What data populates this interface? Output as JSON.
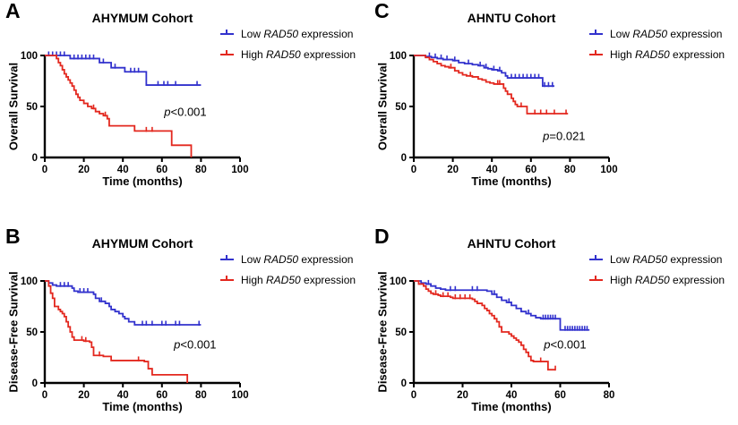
{
  "legend": {
    "items": [
      {
        "prefix": "Low ",
        "gene": "RAD50",
        "suffix": " expression",
        "color": "#3232cd"
      },
      {
        "prefix": "High ",
        "gene": "RAD50",
        "suffix": " expression",
        "color": "#e3281f"
      }
    ]
  },
  "chart_data": [
    {
      "type": "line",
      "panel": "A",
      "title": "AHYMUM Cohort",
      "xlabel": "Time (months)",
      "ylabel": "Overall Survival",
      "xlim": [
        0,
        100
      ],
      "xticks": [
        0,
        20,
        40,
        60,
        80,
        100
      ],
      "ylim": [
        0,
        100
      ],
      "yticks": [
        0,
        50,
        100
      ],
      "annotation": {
        "italic": "p",
        "text": "<0.001",
        "x": 72,
        "y": 45
      },
      "series": [
        {
          "name": "Low RAD50 expression",
          "color": "#3232cd",
          "start": [
            0,
            100
          ],
          "end_x": 80,
          "drops": [
            [
              13,
              97
            ],
            [
              28,
              93
            ],
            [
              34,
              88
            ],
            [
              41,
              84
            ],
            [
              52,
              71
            ]
          ],
          "censor_x": [
            2,
            4,
            6,
            8,
            10,
            15,
            17,
            19,
            21,
            23,
            25,
            30,
            36,
            44,
            46,
            48,
            58,
            61,
            63,
            67,
            78
          ]
        },
        {
          "name": "High RAD50 expression",
          "color": "#e3281f",
          "start": [
            0,
            100
          ],
          "end_x": 75,
          "drops": [
            [
              6,
              97
            ],
            [
              7,
              93
            ],
            [
              8,
              90
            ],
            [
              9,
              86
            ],
            [
              10,
              82
            ],
            [
              11,
              79
            ],
            [
              12,
              76
            ],
            [
              13,
              73
            ],
            [
              14,
              70
            ],
            [
              15,
              66
            ],
            [
              16,
              62
            ],
            [
              17,
              59
            ],
            [
              18,
              56
            ],
            [
              20,
              53
            ],
            [
              22,
              50
            ],
            [
              24,
              48
            ],
            [
              26,
              45
            ],
            [
              28,
              43
            ],
            [
              30,
              41
            ],
            [
              32,
              38
            ],
            [
              33,
              31
            ],
            [
              46,
              26
            ],
            [
              65,
              12
            ],
            [
              75,
              0
            ]
          ],
          "censor_x": [
            25,
            31,
            52,
            55
          ]
        }
      ]
    },
    {
      "type": "line",
      "panel": "B",
      "title": "AHYMUM Cohort",
      "xlabel": "Time (months)",
      "ylabel": "Disease-Free Survival",
      "xlim": [
        0,
        100
      ],
      "xticks": [
        0,
        20,
        40,
        60,
        80,
        100
      ],
      "ylim": [
        0,
        100
      ],
      "yticks": [
        0,
        50,
        100
      ],
      "annotation": {
        "italic": "p",
        "text": "<0.001",
        "x": 77,
        "y": 38
      },
      "series": [
        {
          "name": "Low RAD50 expression",
          "color": "#3232cd",
          "start": [
            0,
            100
          ],
          "end_x": 80,
          "drops": [
            [
              2,
              98
            ],
            [
              4,
              96
            ],
            [
              6,
              95
            ],
            [
              14,
              93
            ],
            [
              15,
              90
            ],
            [
              17,
              89
            ],
            [
              25,
              87
            ],
            [
              26,
              83
            ],
            [
              28,
              80
            ],
            [
              31,
              78
            ],
            [
              33,
              75
            ],
            [
              34,
              72
            ],
            [
              36,
              70
            ],
            [
              38,
              68
            ],
            [
              40,
              65
            ],
            [
              41,
              63
            ],
            [
              43,
              60
            ],
            [
              46,
              57
            ]
          ],
          "censor_x": [
            8,
            10,
            12,
            18,
            20,
            22,
            29,
            50,
            52,
            55,
            60,
            62,
            67,
            69,
            79
          ]
        },
        {
          "name": "High RAD50 expression",
          "color": "#e3281f",
          "start": [
            0,
            100
          ],
          "end_x": 73,
          "drops": [
            [
              2,
              95
            ],
            [
              3,
              88
            ],
            [
              4,
              83
            ],
            [
              5,
              75
            ],
            [
              7,
              72
            ],
            [
              8,
              70
            ],
            [
              9,
              68
            ],
            [
              10,
              65
            ],
            [
              11,
              60
            ],
            [
              12,
              55
            ],
            [
              13,
              50
            ],
            [
              14,
              45
            ],
            [
              15,
              42
            ],
            [
              20,
              41
            ],
            [
              23,
              40
            ],
            [
              24,
              35
            ],
            [
              25,
              27
            ],
            [
              30,
              26
            ],
            [
              34,
              22
            ],
            [
              51,
              21
            ],
            [
              53,
              14
            ],
            [
              55,
              8
            ],
            [
              73,
              0
            ]
          ],
          "censor_x": [
            19,
            21,
            28,
            48
          ]
        }
      ]
    },
    {
      "type": "line",
      "panel": "C",
      "title": "AHNTU Cohort",
      "xlabel": "Time (months)",
      "ylabel": "Overall Survival",
      "xlim": [
        0,
        100
      ],
      "xticks": [
        0,
        20,
        40,
        60,
        80,
        100
      ],
      "ylim": [
        0,
        100
      ],
      "yticks": [
        0,
        50,
        100
      ],
      "annotation": {
        "italic": "p",
        "text": "=0.021",
        "x": 77,
        "y": 21
      },
      "series": [
        {
          "name": "Low RAD50 expression",
          "color": "#3232cd",
          "start": [
            0,
            100
          ],
          "end_x": 72,
          "drops": [
            [
              6,
              99
            ],
            [
              9,
              98
            ],
            [
              12,
              97
            ],
            [
              15,
              96
            ],
            [
              20,
              95
            ],
            [
              23,
              93
            ],
            [
              26,
              92
            ],
            [
              30,
              91
            ],
            [
              33,
              90
            ],
            [
              36,
              88
            ],
            [
              38,
              87
            ],
            [
              40,
              86
            ],
            [
              43,
              85
            ],
            [
              45,
              83
            ],
            [
              47,
              80
            ],
            [
              48,
              78
            ],
            [
              66,
              70
            ]
          ],
          "censor_x": [
            8,
            11,
            14,
            17,
            21,
            28,
            34,
            37,
            41,
            44,
            50,
            52,
            54,
            56,
            58,
            60,
            62,
            64,
            67,
            69,
            71
          ]
        },
        {
          "name": "High RAD50 expression",
          "color": "#e3281f",
          "start": [
            0,
            100
          ],
          "end_x": 79,
          "drops": [
            [
              6,
              98
            ],
            [
              8,
              96
            ],
            [
              10,
              94
            ],
            [
              12,
              92
            ],
            [
              14,
              90
            ],
            [
              16,
              89
            ],
            [
              18,
              88
            ],
            [
              21,
              85
            ],
            [
              23,
              83
            ],
            [
              25,
              81
            ],
            [
              27,
              80
            ],
            [
              30,
              79
            ],
            [
              33,
              77
            ],
            [
              35,
              76
            ],
            [
              37,
              74
            ],
            [
              39,
              73
            ],
            [
              41,
              72
            ],
            [
              46,
              68
            ],
            [
              47,
              65
            ],
            [
              48,
              62
            ],
            [
              50,
              58
            ],
            [
              51,
              55
            ],
            [
              52,
              52
            ],
            [
              53,
              50
            ],
            [
              58,
              43
            ]
          ],
          "censor_x": [
            19,
            29,
            43,
            44,
            55,
            62,
            65,
            68,
            72,
            78
          ]
        }
      ]
    },
    {
      "type": "line",
      "panel": "D",
      "title": "AHNTU Cohort",
      "xlabel": "Time (months)",
      "ylabel": "Disease-Free Survival",
      "xlim": [
        0,
        80
      ],
      "xticks": [
        0,
        20,
        40,
        60,
        80
      ],
      "ylim": [
        0,
        100
      ],
      "yticks": [
        0,
        50,
        100
      ],
      "annotation": {
        "italic": "p",
        "text": "<0.001",
        "x": 62,
        "y": 38
      },
      "series": [
        {
          "name": "Low RAD50 expression",
          "color": "#3232cd",
          "start": [
            0,
            100
          ],
          "end_x": 72,
          "drops": [
            [
              3,
              98
            ],
            [
              5,
              97
            ],
            [
              7,
              95
            ],
            [
              9,
              93
            ],
            [
              11,
              92
            ],
            [
              13,
              91
            ],
            [
              30,
              90
            ],
            [
              32,
              87
            ],
            [
              34,
              84
            ],
            [
              36,
              81
            ],
            [
              38,
              79
            ],
            [
              40,
              76
            ],
            [
              42,
              73
            ],
            [
              44,
              70
            ],
            [
              46,
              68
            ],
            [
              48,
              66
            ],
            [
              50,
              64
            ],
            [
              52,
              63
            ],
            [
              60,
              52
            ]
          ],
          "censor_x": [
            6,
            15,
            17,
            24,
            26,
            33,
            39,
            47,
            53,
            54,
            55,
            56,
            57,
            58,
            62,
            63,
            64,
            65,
            66,
            67,
            68,
            69,
            70,
            71
          ]
        },
        {
          "name": "High RAD50 expression",
          "color": "#e3281f",
          "start": [
            0,
            100
          ],
          "end_x": 58,
          "drops": [
            [
              2,
              97
            ],
            [
              4,
              95
            ],
            [
              5,
              92
            ],
            [
              6,
              90
            ],
            [
              7,
              88
            ],
            [
              8,
              87
            ],
            [
              10,
              86
            ],
            [
              11,
              85
            ],
            [
              15,
              84
            ],
            [
              16,
              83
            ],
            [
              24,
              82
            ],
            [
              25,
              80
            ],
            [
              26,
              78
            ],
            [
              28,
              76
            ],
            [
              29,
              73
            ],
            [
              30,
              71
            ],
            [
              31,
              68
            ],
            [
              32,
              66
            ],
            [
              33,
              63
            ],
            [
              34,
              60
            ],
            [
              35,
              55
            ],
            [
              36,
              50
            ],
            [
              39,
              48
            ],
            [
              40,
              46
            ],
            [
              41,
              44
            ],
            [
              42,
              42
            ],
            [
              43,
              40
            ],
            [
              44,
              37
            ],
            [
              45,
              33
            ],
            [
              46,
              30
            ],
            [
              47,
              26
            ],
            [
              48,
              22
            ],
            [
              49,
              21
            ],
            [
              55,
              13
            ]
          ],
          "censor_x": [
            9,
            12,
            14,
            17,
            19,
            21,
            23,
            52,
            58
          ]
        }
      ]
    }
  ]
}
